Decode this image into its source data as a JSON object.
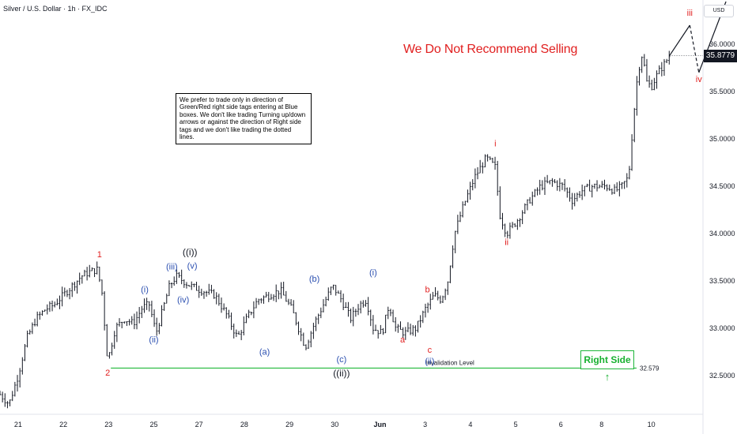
{
  "title": "Silver / U.S. Dollar · 1h · FX_IDC",
  "currency_button": "USD",
  "notice_text": "We prefer to trade only in direction of Green/Red right side tags entering at Blue boxes. We don't like trading Turning up/down arrows or against the direction of Right side tags and we don't like trading the dotted lines.",
  "headline": "We Do Not Recommend Selling",
  "right_side_tag": {
    "label": "Right Side",
    "arrow": "↑"
  },
  "invalidation": {
    "label": "Invalidation Level",
    "value_label": "32.579",
    "price": 32.579
  },
  "last_price": {
    "label": "35.8779",
    "price": 35.8779
  },
  "colors": {
    "red": "#e11f1f",
    "blue": "#2b4fb0",
    "black": "#131722",
    "green": "#1fb53a",
    "candle": "#131722"
  },
  "chart_data": {
    "type": "line",
    "ylim": [
      32.1,
      36.4
    ],
    "y_ticks": [
      32.5,
      33.0,
      33.5,
      34.0,
      34.5,
      35.0,
      35.5,
      36.0
    ],
    "y_tick_labels": [
      "32.5000",
      "33.0000",
      "33.5000",
      "34.0000",
      "34.5000",
      "35.0000",
      "35.5000",
      "36.0000"
    ],
    "x_ticks": [
      {
        "label": "21",
        "t": 0.4
      },
      {
        "label": "22",
        "t": 1.4
      },
      {
        "label": "23",
        "t": 2.4
      },
      {
        "label": "25",
        "t": 3.4
      },
      {
        "label": "27",
        "t": 4.4
      },
      {
        "label": "28",
        "t": 5.4
      },
      {
        "label": "29",
        "t": 6.4
      },
      {
        "label": "30",
        "t": 7.4
      },
      {
        "label": "Jun",
        "t": 8.4,
        "bold": true
      },
      {
        "label": "3",
        "t": 9.4
      },
      {
        "label": "4",
        "t": 10.4
      },
      {
        "label": "5",
        "t": 11.4
      },
      {
        "label": "6",
        "t": 12.4
      },
      {
        "label": "8",
        "t": 13.3
      },
      {
        "label": "10",
        "t": 14.4
      }
    ],
    "price_path": [
      [
        0.0,
        32.3
      ],
      [
        0.2,
        32.2
      ],
      [
        0.4,
        32.5
      ],
      [
        0.6,
        32.9
      ],
      [
        0.8,
        33.1
      ],
      [
        1.0,
        33.2
      ],
      [
        1.2,
        33.25
      ],
      [
        1.5,
        33.4
      ],
      [
        1.8,
        33.55
      ],
      [
        2.0,
        33.6
      ],
      [
        2.15,
        33.62
      ],
      [
        2.25,
        33.4
      ],
      [
        2.38,
        32.65
      ],
      [
        2.55,
        33.0
      ],
      [
        2.75,
        33.1
      ],
      [
        2.95,
        33.05
      ],
      [
        3.15,
        33.22
      ],
      [
        3.3,
        33.25
      ],
      [
        3.45,
        32.95
      ],
      [
        3.6,
        33.2
      ],
      [
        3.75,
        33.45
      ],
      [
        3.9,
        33.55
      ],
      [
        4.05,
        33.5
      ],
      [
        4.2,
        33.45
      ],
      [
        4.45,
        33.4
      ],
      [
        4.75,
        33.35
      ],
      [
        5.0,
        33.15
      ],
      [
        5.25,
        32.9
      ],
      [
        5.45,
        33.1
      ],
      [
        5.7,
        33.3
      ],
      [
        5.95,
        33.35
      ],
      [
        6.2,
        33.4
      ],
      [
        6.45,
        33.2
      ],
      [
        6.75,
        32.8
      ],
      [
        6.95,
        33.05
      ],
      [
        7.15,
        33.25
      ],
      [
        7.35,
        33.45
      ],
      [
        7.55,
        33.3
      ],
      [
        7.75,
        33.1
      ],
      [
        7.95,
        33.25
      ],
      [
        8.1,
        33.3
      ],
      [
        8.25,
        33.0
      ],
      [
        8.45,
        32.95
      ],
      [
        8.6,
        33.25
      ],
      [
        8.75,
        33.0
      ],
      [
        8.95,
        32.95
      ],
      [
        9.2,
        33.0
      ],
      [
        9.4,
        33.2
      ],
      [
        9.6,
        33.35
      ],
      [
        9.75,
        33.3
      ],
      [
        9.9,
        33.5
      ],
      [
        10.05,
        34.0
      ],
      [
        10.25,
        34.3
      ],
      [
        10.5,
        34.6
      ],
      [
        10.75,
        34.8
      ],
      [
        10.95,
        34.7
      ],
      [
        11.05,
        34.2
      ],
      [
        11.2,
        34.0
      ],
      [
        11.45,
        34.15
      ],
      [
        11.7,
        34.35
      ],
      [
        11.95,
        34.5
      ],
      [
        12.2,
        34.55
      ],
      [
        12.45,
        34.5
      ],
      [
        12.65,
        34.35
      ],
      [
        12.85,
        34.45
      ],
      [
        13.1,
        34.5
      ],
      [
        13.4,
        34.5
      ],
      [
        13.6,
        34.45
      ],
      [
        13.75,
        34.5
      ],
      [
        13.9,
        34.6
      ],
      [
        14.0,
        35.2
      ],
      [
        14.1,
        35.7
      ],
      [
        14.2,
        35.9
      ],
      [
        14.3,
        35.6
      ],
      [
        14.4,
        35.55
      ],
      [
        14.55,
        35.7
      ],
      [
        14.7,
        35.8
      ],
      [
        14.8,
        35.8779
      ]
    ],
    "projection": [
      {
        "from": [
          14.8,
          35.8779
        ],
        "to": [
          15.25,
          36.2
        ],
        "style": "solid"
      },
      {
        "from": [
          15.25,
          36.2
        ],
        "to": [
          15.45,
          35.7
        ],
        "style": "dashed"
      },
      {
        "from": [
          15.45,
          35.7
        ],
        "to": [
          16.05,
          36.45
        ],
        "style": "solid"
      }
    ],
    "wave_labels": [
      {
        "text": "1",
        "t": 2.2,
        "p": 33.75,
        "color": "red"
      },
      {
        "text": "2",
        "t": 2.38,
        "p": 32.5,
        "color": "red"
      },
      {
        "text": "(i)",
        "t": 3.2,
        "p": 33.38,
        "color": "blue"
      },
      {
        "text": "(ii)",
        "t": 3.4,
        "p": 32.85,
        "color": "blue"
      },
      {
        "text": "(iii)",
        "t": 3.8,
        "p": 33.62,
        "color": "blue"
      },
      {
        "text": "(iv)",
        "t": 4.05,
        "p": 33.27,
        "color": "blue"
      },
      {
        "text": "(v)",
        "t": 4.25,
        "p": 33.63,
        "color": "blue"
      },
      {
        "text": "((i))",
        "t": 4.2,
        "p": 33.77,
        "color": "black"
      },
      {
        "text": "(a)",
        "t": 5.85,
        "p": 32.72,
        "color": "blue"
      },
      {
        "text": "(b)",
        "t": 6.95,
        "p": 33.49,
        "color": "blue"
      },
      {
        "text": "(c)",
        "t": 7.55,
        "p": 32.64,
        "color": "blue"
      },
      {
        "text": "((ii))",
        "t": 7.55,
        "p": 32.49,
        "color": "black"
      },
      {
        "text": "(i)",
        "t": 8.25,
        "p": 33.56,
        "color": "blue"
      },
      {
        "text": "a",
        "t": 8.9,
        "p": 32.85,
        "color": "red"
      },
      {
        "text": "b",
        "t": 9.45,
        "p": 33.38,
        "color": "red"
      },
      {
        "text": "c",
        "t": 9.5,
        "p": 32.74,
        "color": "red"
      },
      {
        "text": "(ii)",
        "t": 9.5,
        "p": 32.62,
        "color": "blue"
      },
      {
        "text": "i",
        "t": 10.95,
        "p": 34.92,
        "color": "red"
      },
      {
        "text": "ii",
        "t": 11.2,
        "p": 33.88,
        "color": "red"
      },
      {
        "text": "iii",
        "t": 15.25,
        "p": 36.3,
        "color": "red"
      },
      {
        "text": "iv",
        "t": 15.45,
        "p": 35.6,
        "color": "red"
      }
    ]
  }
}
